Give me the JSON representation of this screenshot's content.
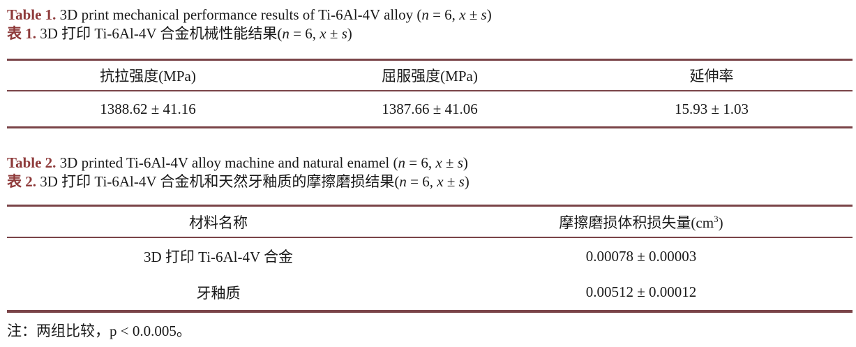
{
  "colors": {
    "rule": "#7a4448",
    "accent": "#8e3a3a",
    "text": "#1a1a1a"
  },
  "stat": {
    "open": "(",
    "n": "n",
    "mid": " = 6, ",
    "xs": "x ± s",
    "close": ")"
  },
  "captions": {
    "table1_en": {
      "label": "Table 1.",
      "body": " 3D print mechanical performance results of Ti-6Al-4V alloy "
    },
    "table1_zh": {
      "label": "表 1.",
      "body": " 3D 打印 Ti-6Al-4V 合金机械性能结果"
    },
    "table2_en": {
      "label": "Table 2.",
      "body": " 3D printed Ti-6Al-4V alloy machine and natural enamel "
    },
    "table2_zh": {
      "label": "表 2.",
      "body": " 3D 打印 Ti-6Al-4V 合金机和天然牙釉质的摩擦磨损结果"
    }
  },
  "table1": {
    "headers": [
      "抗拉强度(MPa)",
      "屈服强度(MPa)",
      "延伸率"
    ],
    "rows": [
      [
        "1388.62 ± 41.16",
        "1387.66 ± 41.06",
        "15.93 ± 1.03"
      ]
    ]
  },
  "table2": {
    "header_material": "材料名称",
    "header_wear": {
      "pre": "摩擦磨损体积损失量(cm",
      "sup": "3",
      "post": ")"
    },
    "rows": [
      {
        "material": "3D 打印 Ti-6Al-4V 合金",
        "value": "0.00078 ± 0.00003"
      },
      {
        "material": "牙釉质",
        "value": "0.00512 ± 0.00012"
      }
    ]
  },
  "footnote": {
    "text": "注：两组比较，p < 0.0.005。"
  }
}
